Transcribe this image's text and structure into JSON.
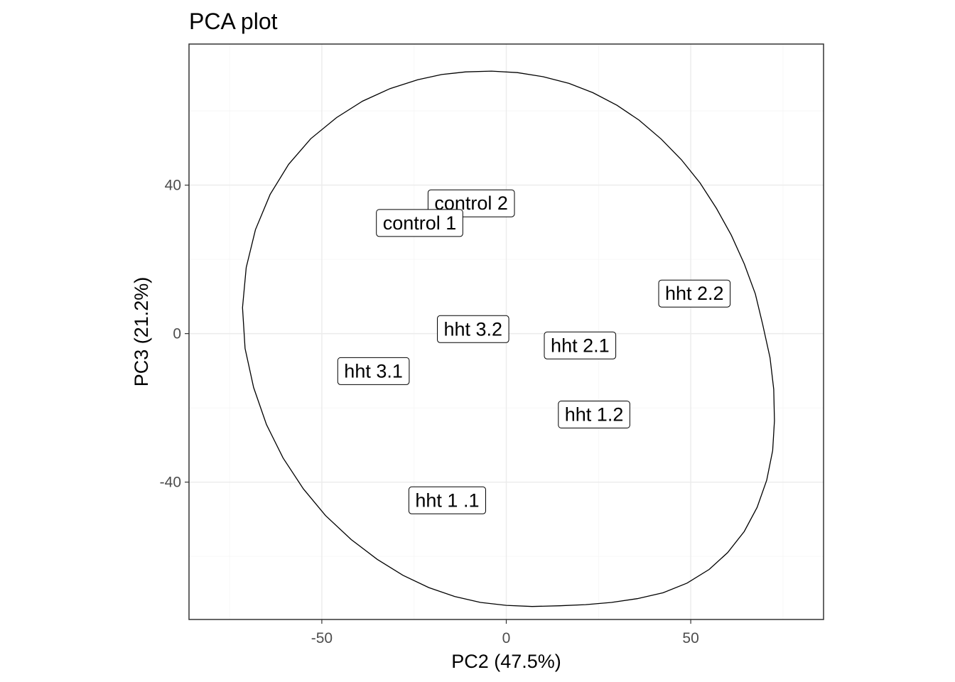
{
  "chart_data": {
    "type": "scatter",
    "title": "PCA plot",
    "xlabel": "PC2 (47.5%)",
    "ylabel": "PC3 (21.2%)",
    "xlim": [
      -86,
      86
    ],
    "ylim": [
      -77,
      78
    ],
    "x_major_ticks": [
      -50,
      0,
      50
    ],
    "x_minor_ticks": [
      -75,
      -25,
      25,
      75
    ],
    "y_major_ticks": [
      -40,
      0,
      40
    ],
    "y_minor_ticks": [
      -60,
      -20,
      20,
      60
    ],
    "x_tick_labels": [
      "-50",
      "0",
      "50"
    ],
    "y_tick_labels": [
      "-40",
      "0",
      "40"
    ],
    "grid": true,
    "labels": [
      {
        "label": "control 2",
        "x": -9.5,
        "y": 35.1
      },
      {
        "label": "control 1",
        "x": -23.5,
        "y": 29.8
      },
      {
        "label": "hht 2.2",
        "x": 51,
        "y": 10.8
      },
      {
        "label": "hht 3.2",
        "x": -9,
        "y": 1.2
      },
      {
        "label": "hht 2.1",
        "x": 20,
        "y": -3.2
      },
      {
        "label": "hht 3.1",
        "x": -36,
        "y": -10.1
      },
      {
        "label": "hht 1.2",
        "x": 23.8,
        "y": -21.8
      },
      {
        "label": "hht 1 .1",
        "x": -16,
        "y": -44.9
      }
    ],
    "ellipse": {
      "points": [
        [
          -11,
          70.5
        ],
        [
          -4,
          70.7
        ],
        [
          3,
          70.3
        ],
        [
          10,
          69.2
        ],
        [
          17,
          67.4
        ],
        [
          23.5,
          64.9
        ],
        [
          30,
          61.5
        ],
        [
          36,
          57.5
        ],
        [
          42,
          52.4
        ],
        [
          47.5,
          46.8
        ],
        [
          52.5,
          40.6
        ],
        [
          57,
          33.7
        ],
        [
          61,
          26.5
        ],
        [
          64.5,
          18.8
        ],
        [
          67.5,
          10.7
        ],
        [
          69.5,
          2.5
        ],
        [
          71.5,
          -6.5
        ],
        [
          72.5,
          -15
        ],
        [
          72.7,
          -23.5
        ],
        [
          72.2,
          -31.5
        ],
        [
          70.6,
          -39.5
        ],
        [
          68,
          -46.8
        ],
        [
          64.5,
          -53.3
        ],
        [
          60,
          -59
        ],
        [
          55,
          -63.5
        ],
        [
          49,
          -67.2
        ],
        [
          42.5,
          -69.8
        ],
        [
          35.5,
          -71.4
        ],
        [
          28.5,
          -72.4
        ],
        [
          21.5,
          -73
        ],
        [
          14.5,
          -73.3
        ],
        [
          7,
          -73.5
        ],
        [
          0,
          -73.2
        ],
        [
          -7,
          -72.4
        ],
        [
          -14,
          -70.8
        ],
        [
          -21,
          -68.4
        ],
        [
          -28,
          -65.1
        ],
        [
          -35,
          -60.8
        ],
        [
          -42,
          -55.5
        ],
        [
          -49,
          -49
        ],
        [
          -55,
          -41.8
        ],
        [
          -60.5,
          -33.5
        ],
        [
          -65,
          -24.5
        ],
        [
          -68.5,
          -14.5
        ],
        [
          -70.8,
          -4
        ],
        [
          -71.5,
          7
        ],
        [
          -70.5,
          17.8
        ],
        [
          -68,
          28
        ],
        [
          -64,
          37.5
        ],
        [
          -59,
          45.6
        ],
        [
          -53,
          52.5
        ],
        [
          -46,
          58.2
        ],
        [
          -39,
          62.6
        ],
        [
          -31.5,
          66
        ],
        [
          -24,
          68.4
        ],
        [
          -17.5,
          69.8
        ],
        [
          -11,
          70.5
        ]
      ]
    }
  }
}
